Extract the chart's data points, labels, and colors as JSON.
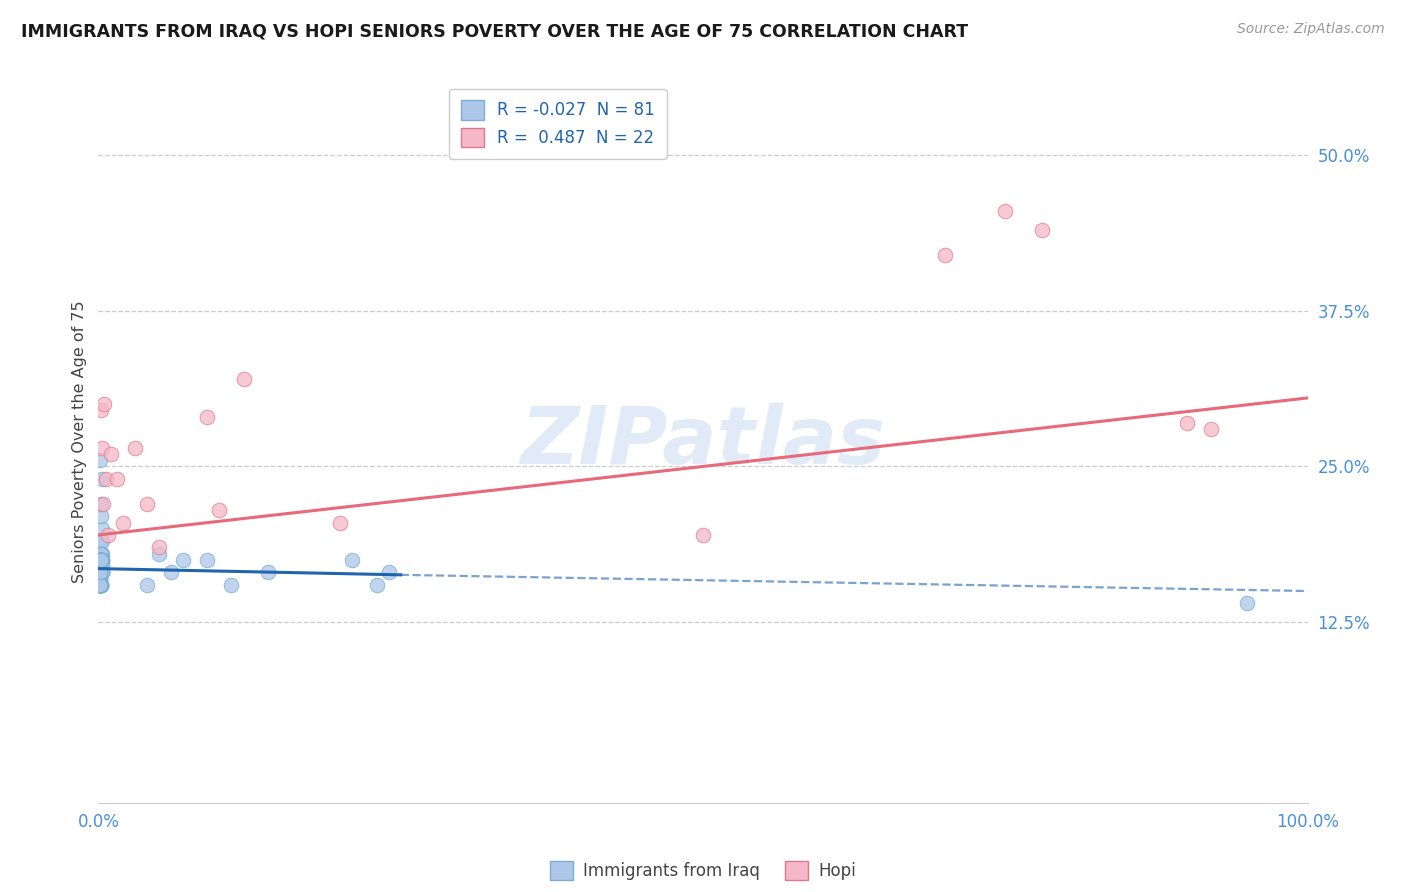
{
  "title": "IMMIGRANTS FROM IRAQ VS HOPI SENIORS POVERTY OVER THE AGE OF 75 CORRELATION CHART",
  "source": "Source: ZipAtlas.com",
  "ylabel": "Seniors Poverty Over the Age of 75",
  "xlim": [
    0.0,
    1.0
  ],
  "ylim": [
    -0.02,
    0.56
  ],
  "ytick_vals": [
    0.0,
    0.125,
    0.25,
    0.375,
    0.5
  ],
  "ytick_labels": [
    "",
    "12.5%",
    "25.0%",
    "37.5%",
    "50.0%"
  ],
  "xtick_vals": [
    0.0,
    1.0
  ],
  "xtick_labels": [
    "0.0%",
    "100.0%"
  ],
  "legend_entries": [
    {
      "label": "R = -0.027  N = 81",
      "facecolor": "#aec6e8",
      "edgecolor": "#7aaed4"
    },
    {
      "label": "R =  0.487  N = 22",
      "facecolor": "#f4b8c8",
      "edgecolor": "#e07888"
    }
  ],
  "legend_label_iraq": "Immigrants from Iraq",
  "legend_label_hopi": "Hopi",
  "watermark": "ZIPatlas",
  "background_color": "#ffffff",
  "grid_color": "#cccccc",
  "iraq_scatter_x": [
    0.002,
    0.003,
    0.002,
    0.001,
    0.003,
    0.002,
    0.001,
    0.002,
    0.001,
    0.003,
    0.002,
    0.001,
    0.002,
    0.003,
    0.001,
    0.002,
    0.001,
    0.002,
    0.003,
    0.001,
    0.002,
    0.001,
    0.002,
    0.003,
    0.001,
    0.002,
    0.001,
    0.003,
    0.002,
    0.001,
    0.002,
    0.001,
    0.002,
    0.003,
    0.001,
    0.002,
    0.001,
    0.002,
    0.003,
    0.001,
    0.002,
    0.001,
    0.002,
    0.003,
    0.001,
    0.002,
    0.001,
    0.002,
    0.003,
    0.001,
    0.002,
    0.001,
    0.002,
    0.001,
    0.002,
    0.001,
    0.002,
    0.001,
    0.002,
    0.001,
    0.002,
    0.001,
    0.003,
    0.002,
    0.001,
    0.002,
    0.001,
    0.002,
    0.003,
    0.001,
    0.04,
    0.06,
    0.05,
    0.07,
    0.09,
    0.11,
    0.14,
    0.21,
    0.24,
    0.23,
    0.95
  ],
  "iraq_scatter_y": [
    0.175,
    0.2,
    0.165,
    0.155,
    0.18,
    0.19,
    0.17,
    0.21,
    0.16,
    0.19,
    0.175,
    0.165,
    0.18,
    0.175,
    0.155,
    0.17,
    0.175,
    0.18,
    0.165,
    0.16,
    0.155,
    0.17,
    0.175,
    0.165,
    0.175,
    0.18,
    0.165,
    0.175,
    0.155,
    0.165,
    0.17,
    0.155,
    0.165,
    0.175,
    0.16,
    0.175,
    0.155,
    0.165,
    0.17,
    0.155,
    0.165,
    0.175,
    0.155,
    0.165,
    0.17,
    0.175,
    0.155,
    0.165,
    0.17,
    0.155,
    0.165,
    0.175,
    0.155,
    0.165,
    0.175,
    0.155,
    0.165,
    0.175,
    0.155,
    0.165,
    0.175,
    0.155,
    0.165,
    0.175,
    0.155,
    0.22,
    0.165,
    0.175,
    0.24,
    0.255,
    0.155,
    0.165,
    0.18,
    0.175,
    0.175,
    0.155,
    0.165,
    0.175,
    0.165,
    0.155,
    0.14
  ],
  "iraq_solid_line_x": [
    0.0,
    0.25
  ],
  "iraq_solid_line_y": [
    0.168,
    0.163
  ],
  "iraq_dash_line_x": [
    0.25,
    1.0
  ],
  "iraq_dash_line_y": [
    0.163,
    0.15
  ],
  "iraq_line_color": "#2166ac",
  "iraq_scatter_facecolor": "#aec6e8",
  "iraq_scatter_edgecolor": "#6aaed4",
  "hopi_scatter_x": [
    0.002,
    0.003,
    0.004,
    0.005,
    0.006,
    0.008,
    0.01,
    0.015,
    0.02,
    0.03,
    0.04,
    0.05,
    0.09,
    0.1,
    0.12,
    0.2,
    0.5,
    0.7,
    0.75,
    0.78,
    0.9,
    0.92
  ],
  "hopi_scatter_y": [
    0.295,
    0.265,
    0.22,
    0.3,
    0.24,
    0.195,
    0.26,
    0.24,
    0.205,
    0.265,
    0.22,
    0.185,
    0.29,
    0.215,
    0.32,
    0.205,
    0.195,
    0.42,
    0.455,
    0.44,
    0.285,
    0.28
  ],
  "hopi_solid_line_x": [
    0.0,
    1.0
  ],
  "hopi_solid_line_y": [
    0.195,
    0.305
  ],
  "hopi_line_color": "#e8697a",
  "hopi_scatter_facecolor": "#f4b8c8",
  "hopi_scatter_edgecolor": "#e07888"
}
